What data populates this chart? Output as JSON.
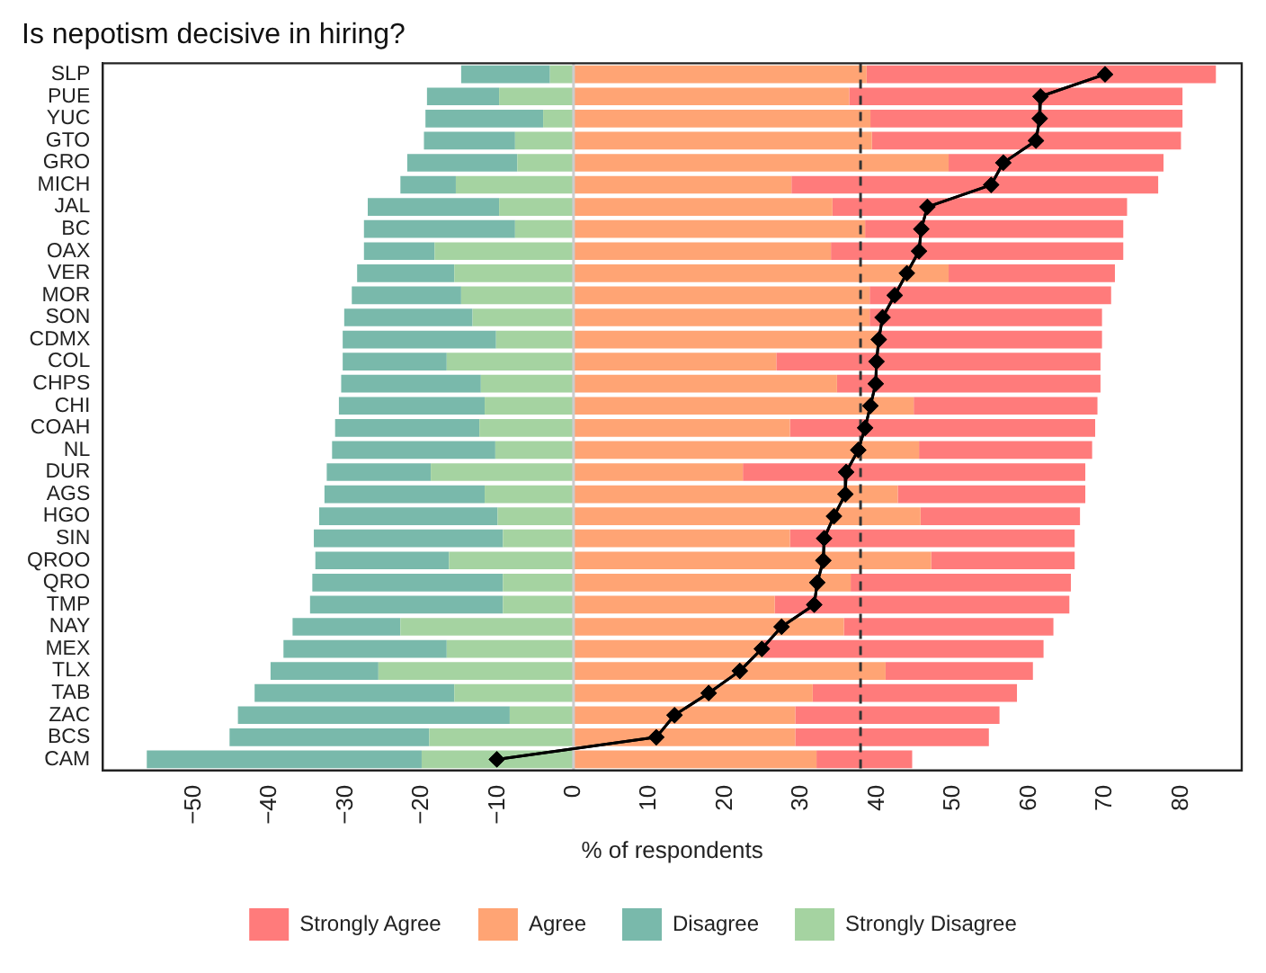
{
  "chart_data": {
    "type": "bar",
    "title": "Is nepotism decisive in hiring?",
    "xlabel": "% of respondents",
    "orientation": "horizontal",
    "stacked": true,
    "legend": "bottom",
    "marker": "diamond",
    "categories": [
      "SLP",
      "PUE",
      "YUC",
      "GTO",
      "GRO",
      "MICH",
      "JAL",
      "BC",
      "OAX",
      "VER",
      "MOR",
      "SON",
      "CDMX",
      "COL",
      "CHPS",
      "CHI",
      "COAH",
      "NL",
      "DUR",
      "AGS",
      "HGO",
      "SIN",
      "QROO",
      "QRO",
      "TMP",
      "NAY",
      "MEX",
      "TLX",
      "TAB",
      "ZAC",
      "BCS",
      "CAM"
    ],
    "series": [
      {
        "name": "Strongly Disagree",
        "color": "#a5d3a1",
        "values": [
          -3.1,
          -9.8,
          -4.0,
          -7.7,
          -7.4,
          -15.5,
          -9.8,
          -7.7,
          -18.3,
          -15.7,
          -14.8,
          -13.3,
          -10.2,
          -16.7,
          -12.2,
          -11.7,
          -12.4,
          -10.3,
          -18.8,
          -11.7,
          -10.0,
          -9.3,
          -16.4,
          -9.3,
          -9.3,
          -22.8,
          -16.7,
          -25.7,
          -15.7,
          -8.4,
          -19.0,
          -20.0
        ]
      },
      {
        "name": "Disagree",
        "color": "#79b9ab",
        "values": [
          -11.7,
          -9.5,
          -15.5,
          -12.0,
          -14.5,
          -7.3,
          -17.3,
          -19.9,
          -9.3,
          -12.8,
          -14.4,
          -16.9,
          -20.2,
          -13.7,
          -18.4,
          -19.2,
          -19.0,
          -21.5,
          -13.7,
          -21.1,
          -23.5,
          -24.9,
          -17.6,
          -25.1,
          -25.4,
          -14.2,
          -21.5,
          -14.2,
          -26.3,
          -35.8,
          -26.3,
          -36.2
        ]
      },
      {
        "name": "Agree",
        "color": "#ffa474",
        "values": [
          38.6,
          36.3,
          39.1,
          39.3,
          49.4,
          28.7,
          34.1,
          38.4,
          33.9,
          49.4,
          39.0,
          39.0,
          40.0,
          26.7,
          34.7,
          44.8,
          28.5,
          45.5,
          22.3,
          42.7,
          45.7,
          28.5,
          47.1,
          36.5,
          26.5,
          35.6,
          25.0,
          41.1,
          31.5,
          29.2,
          29.2,
          32.0
        ]
      },
      {
        "name": "Strongly Agree",
        "color": "#ff7b7b",
        "values": [
          46.0,
          43.9,
          41.1,
          40.7,
          28.3,
          48.3,
          38.8,
          34.0,
          38.5,
          21.9,
          31.8,
          30.6,
          29.6,
          42.7,
          34.7,
          24.2,
          40.2,
          22.8,
          45.1,
          24.7,
          21.0,
          37.5,
          18.9,
          29.0,
          38.8,
          27.6,
          36.9,
          19.4,
          26.9,
          26.9,
          25.5,
          12.6
        ]
      },
      {
        "type": "line",
        "color": "#000000",
        "values": [
          70.0,
          61.5,
          61.4,
          60.9,
          56.6,
          55.0,
          46.6,
          45.8,
          45.5,
          43.9,
          42.3,
          40.7,
          40.2,
          39.9,
          39.8,
          39.1,
          38.4,
          37.5,
          35.9,
          35.8,
          34.3,
          33.0,
          32.9,
          32.1,
          31.7,
          27.4,
          24.8,
          21.9,
          17.8,
          13.3,
          10.9,
          -10.1
        ]
      }
    ],
    "xlim": [
      -62,
      88
    ],
    "xticks": [
      -50,
      -40,
      -30,
      -20,
      -10,
      0,
      10,
      20,
      30,
      40,
      50,
      60,
      70,
      80
    ],
    "ref_lines": [
      {
        "axis": "x",
        "value": 0,
        "color": "#cccccc",
        "line_style": "solid"
      },
      {
        "axis": "x",
        "value": 37.8,
        "color": "#333333",
        "line_style": "dashed"
      }
    ]
  }
}
